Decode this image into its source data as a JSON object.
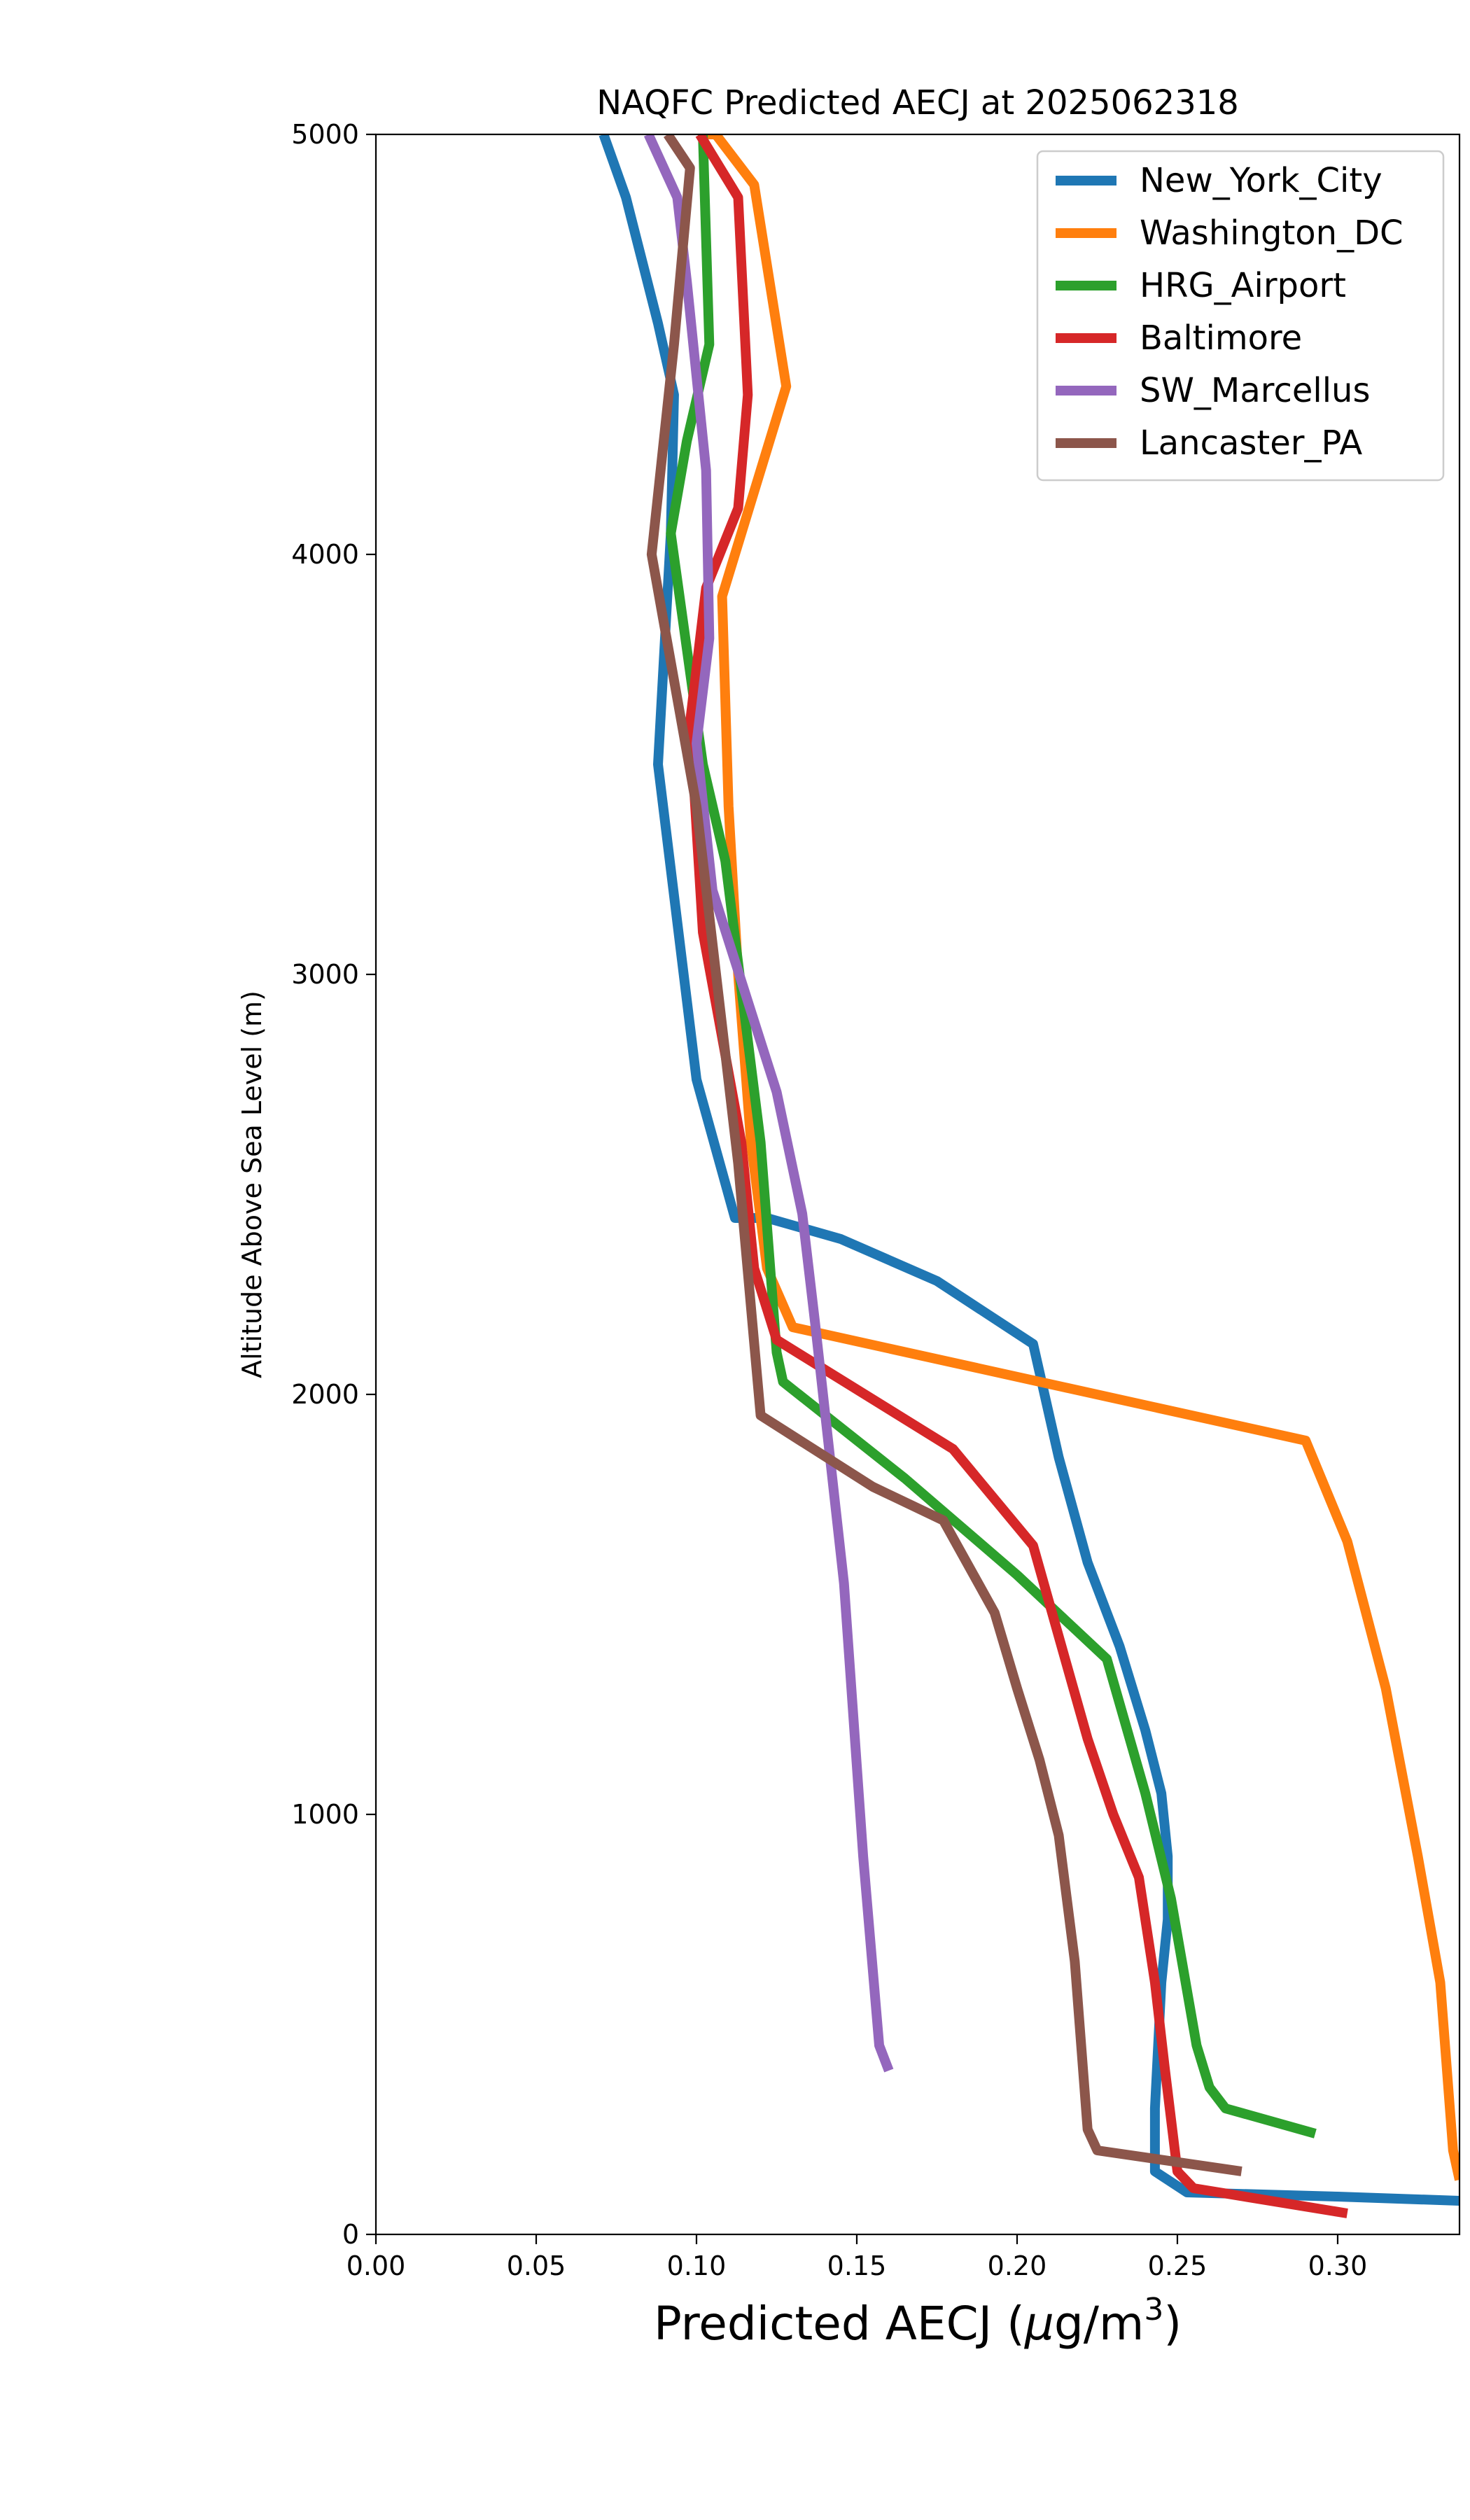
{
  "chart_data": {
    "type": "line",
    "title": "NAQFC Predicted AECJ at 2025062318",
    "xlabel_prefix": "Predicted AECJ (",
    "xlabel_mu": "μ",
    "xlabel_unit": "g/m",
    "xlabel_sup": "3",
    "xlabel_suffix": ")",
    "ylabel": "Altitude Above Sea Level (m)",
    "xlim": [
      0,
      0.338
    ],
    "ylim": [
      0,
      5000
    ],
    "xticks": [
      0.0,
      0.05,
      0.1,
      0.15,
      0.2,
      0.25,
      0.3
    ],
    "xtick_labels": [
      "0.00",
      "0.05",
      "0.10",
      "0.15",
      "0.20",
      "0.25",
      "0.30"
    ],
    "yticks": [
      0,
      1000,
      2000,
      3000,
      4000,
      5000
    ],
    "ytick_labels": [
      "0",
      "1000",
      "2000",
      "3000",
      "4000",
      "5000"
    ],
    "grid": false,
    "legend_position": "top-right",
    "series": [
      {
        "name": "New_York_City",
        "color": "#1f77b4",
        "x": [
          0.338,
          0.3,
          0.253,
          0.243,
          0.243,
          0.245,
          0.247,
          0.247,
          0.245,
          0.24,
          0.232,
          0.222,
          0.213,
          0.205,
          0.175,
          0.145,
          0.122,
          0.112,
          0.1,
          0.088,
          0.092,
          0.093,
          0.088,
          0.078,
          0.071
        ],
        "y": [
          80,
          90,
          100,
          150,
          300,
          600,
          750,
          900,
          1050,
          1200,
          1400,
          1600,
          1850,
          2120,
          2270,
          2370,
          2420,
          2420,
          2750,
          3500,
          4050,
          4380,
          4550,
          4850,
          5000
        ]
      },
      {
        "name": "Washington_DC",
        "color": "#ff7f0e",
        "x": [
          0.338,
          0.336,
          0.332,
          0.325,
          0.315,
          0.303,
          0.29,
          0.13,
          0.122,
          0.117,
          0.113,
          0.11,
          0.108,
          0.118,
          0.128,
          0.118,
          0.106,
          0.102
        ],
        "y": [
          130,
          200,
          600,
          900,
          1300,
          1650,
          1890,
          2160,
          2300,
          2600,
          3000,
          3400,
          3900,
          4150,
          4400,
          4880,
          5000,
          5000
        ]
      },
      {
        "name": "HRG_Airport",
        "color": "#2ca02c",
        "x": [
          0.293,
          0.265,
          0.26,
          0.256,
          0.248,
          0.24,
          0.228,
          0.2,
          0.165,
          0.127,
          0.125,
          0.12,
          0.109,
          0.102,
          0.092,
          0.097,
          0.104,
          0.102
        ],
        "y": [
          240,
          300,
          350,
          450,
          800,
          1050,
          1370,
          1570,
          1800,
          2030,
          2100,
          2600,
          3270,
          3500,
          4050,
          4270,
          4500,
          5000
        ]
      },
      {
        "name": "Baltimore",
        "color": "#d62728",
        "x": [
          0.303,
          0.255,
          0.25,
          0.246,
          0.243,
          0.238,
          0.23,
          0.222,
          0.205,
          0.18,
          0.125,
          0.118,
          0.114,
          0.102,
          0.098,
          0.103,
          0.113,
          0.116,
          0.113,
          0.101
        ],
        "y": [
          50,
          110,
          150,
          400,
          600,
          850,
          1000,
          1180,
          1640,
          1870,
          2130,
          2300,
          2600,
          3100,
          3600,
          3920,
          4110,
          4380,
          4850,
          5000
        ]
      },
      {
        "name": "SW_Marcellus",
        "color": "#9467bd",
        "x": [
          0.16,
          0.157,
          0.152,
          0.146,
          0.137,
          0.133,
          0.125,
          0.105,
          0.1,
          0.104,
          0.103,
          0.097,
          0.094,
          0.085
        ],
        "y": [
          390,
          450,
          900,
          1550,
          2170,
          2430,
          2720,
          3200,
          3550,
          3800,
          4200,
          4650,
          4850,
          5000
        ]
      },
      {
        "name": "Lancaster_PA",
        "color": "#8c564b",
        "x": [
          0.27,
          0.225,
          0.222,
          0.218,
          0.213,
          0.207,
          0.2,
          0.193,
          0.177,
          0.155,
          0.12,
          0.113,
          0.1,
          0.086,
          0.093,
          0.098,
          0.091
        ],
        "y": [
          150,
          200,
          250,
          650,
          950,
          1130,
          1300,
          1480,
          1700,
          1780,
          1950,
          2550,
          3400,
          4000,
          4500,
          4920,
          5000
        ]
      }
    ]
  }
}
